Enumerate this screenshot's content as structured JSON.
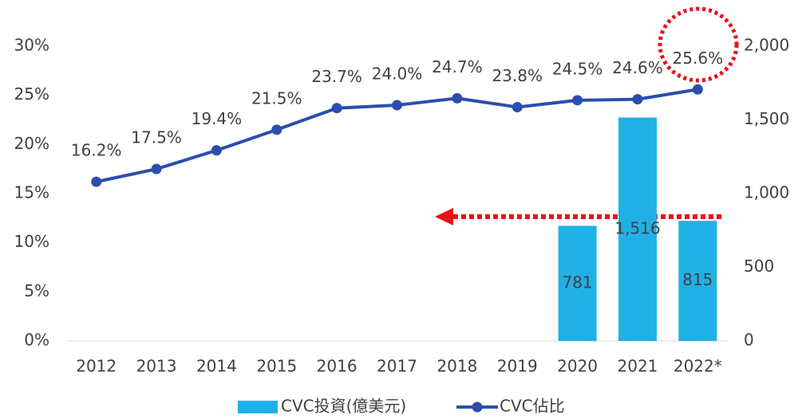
{
  "chart_data": {
    "type": "bar-line",
    "categories": [
      "2012",
      "2013",
      "2014",
      "2015",
      "2016",
      "2017",
      "2018",
      "2019",
      "2020",
      "2021",
      "2022*"
    ],
    "series": [
      {
        "name": "CVC投資(億美元)",
        "type": "bar",
        "axis": "y2",
        "color": "#1fb1e6",
        "values": [
          null,
          null,
          null,
          null,
          null,
          null,
          null,
          null,
          781,
          1516,
          815
        ],
        "value_labels": [
          null,
          null,
          null,
          null,
          null,
          null,
          null,
          null,
          "781",
          "1,516",
          "815"
        ]
      },
      {
        "name": "CVC佔比",
        "type": "line",
        "axis": "y",
        "color": "#2a4db0",
        "values": [
          16.2,
          17.5,
          19.4,
          21.5,
          23.7,
          24.0,
          24.7,
          23.8,
          24.5,
          24.6,
          25.6
        ],
        "value_labels": [
          "16.2%",
          "17.5%",
          "19.4%",
          "21.5%",
          "23.7%",
          "24.0%",
          "24.7%",
          "23.8%",
          "24.5%",
          "24.6%",
          "25.6%"
        ]
      }
    ],
    "ylim": [
      0,
      30
    ],
    "yticks": [
      {
        "value": 0,
        "label": "0%"
      },
      {
        "value": 5,
        "label": "5%"
      },
      {
        "value": 10,
        "label": "10%"
      },
      {
        "value": 15,
        "label": "15%"
      },
      {
        "value": 20,
        "label": "20%"
      },
      {
        "value": 25,
        "label": "25%"
      },
      {
        "value": 30,
        "label": "30%"
      }
    ],
    "y2lim": [
      0,
      2000
    ],
    "y2ticks": [
      0,
      500,
      {
        "value": 1000,
        "label": "1,000"
      },
      {
        "value": 1500,
        "label": "1,500"
      },
      {
        "value": 2000,
        "label": "2,000"
      }
    ],
    "legend": "bottom"
  }
}
